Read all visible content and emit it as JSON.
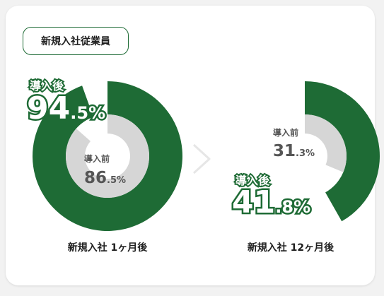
{
  "badge": "新規入社従業員",
  "chart_data": [
    {
      "type": "pie",
      "caption": "新規入社 1ヶ月後",
      "series": [
        {
          "name": "導入後",
          "value": 94.5,
          "int": "94",
          "dec": ".5",
          "unit": "%"
        },
        {
          "name": "導入前",
          "value": 86.5,
          "int": "86",
          "dec": ".5",
          "unit": "%"
        }
      ]
    },
    {
      "type": "pie",
      "caption": "新規入社 12ヶ月後",
      "series": [
        {
          "name": "導入後",
          "value": 41.8,
          "int": "41",
          "dec": ".8",
          "unit": "%"
        },
        {
          "name": "導入前",
          "value": 31.3,
          "int": "31",
          "dec": ".3",
          "unit": "%"
        }
      ]
    }
  ],
  "colors": {
    "after": "#1e6b35",
    "before": "#d6d6d6",
    "text": "#555555"
  },
  "icons": {
    "separator": "chevron-right-icon"
  }
}
